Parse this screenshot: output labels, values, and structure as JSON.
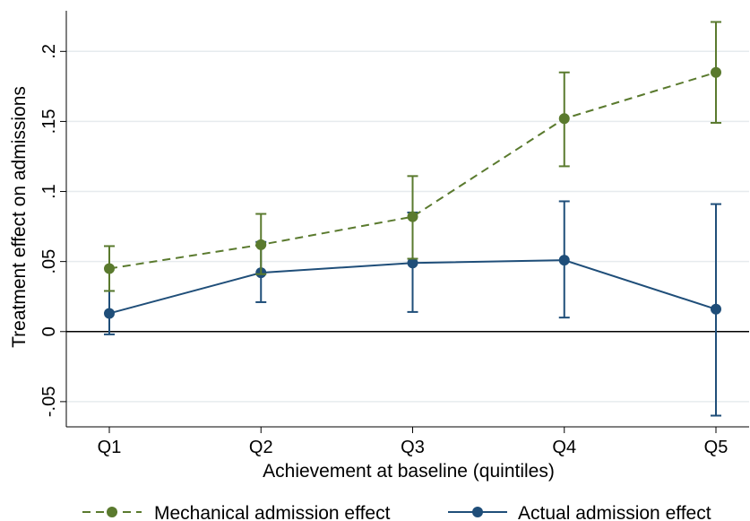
{
  "chart_data": {
    "type": "line",
    "title": "",
    "xlabel": "Achievement at baseline (quintiles)",
    "ylabel": "Treatment effect on admissions",
    "categories": [
      "Q1",
      "Q2",
      "Q3",
      "Q4",
      "Q5"
    ],
    "ylim": [
      -0.068,
      0.229
    ],
    "yticks": [
      -0.05,
      0,
      0.05,
      0.1,
      0.15,
      0.2
    ],
    "ytick_labels": [
      "-.05",
      "0",
      ".05",
      ".1",
      ".15",
      ".2"
    ],
    "grid": true,
    "zero_line": true,
    "legend_position": "bottom",
    "series": [
      {
        "name": "Mechanical admission effect",
        "color": "#5a7a2e",
        "line_style": "dashed",
        "values": [
          0.045,
          0.062,
          0.082,
          0.152,
          0.185
        ],
        "ci_low": [
          0.029,
          0.041,
          0.052,
          0.118,
          0.149
        ],
        "ci_high": [
          0.061,
          0.084,
          0.111,
          0.185,
          0.221
        ]
      },
      {
        "name": "Actual admission effect",
        "color": "#1f4e79",
        "line_style": "solid",
        "values": [
          0.013,
          0.042,
          0.049,
          0.051,
          0.016
        ],
        "ci_low": [
          -0.002,
          0.021,
          0.014,
          0.01,
          -0.06
        ],
        "ci_high": [
          0.029,
          0.064,
          0.085,
          0.093,
          0.091
        ]
      }
    ]
  }
}
